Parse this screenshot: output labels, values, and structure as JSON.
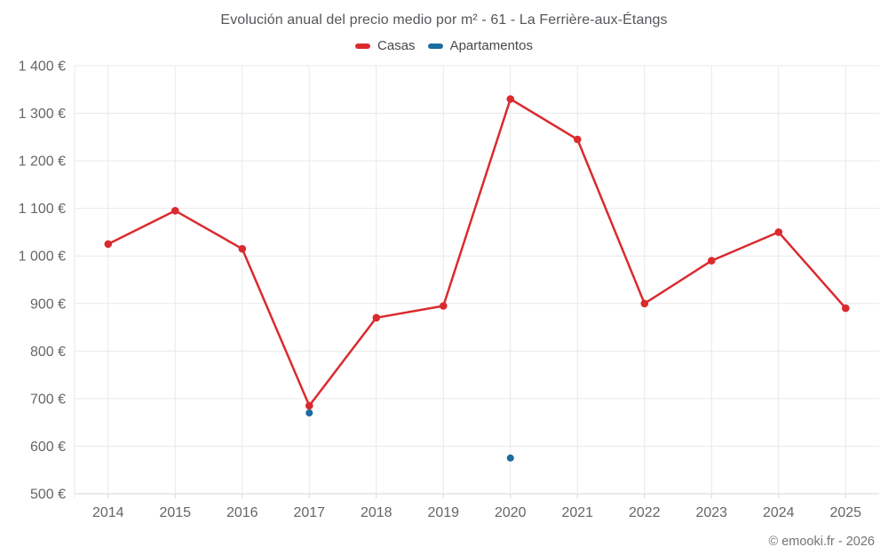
{
  "header": {
    "title": "Evolución anual del precio medio por m² - 61 - La Ferrière-aux-Étangs"
  },
  "legend": {
    "items": [
      {
        "label": "Casas",
        "color": "#da2a2e"
      },
      {
        "label": "Apartamentos",
        "color": "#1a6d9e"
      }
    ]
  },
  "footer": {
    "credit": "© emooki.fr - 2026"
  },
  "chart_data": {
    "type": "line",
    "title": "Evolución anual del precio medio por m² - 61 - La Ferrière-aux-Étangs",
    "categories": [
      "2014",
      "2015",
      "2016",
      "2017",
      "2018",
      "2019",
      "2020",
      "2021",
      "2022",
      "2023",
      "2024",
      "2025"
    ],
    "series": [
      {
        "name": "Casas",
        "color": "#da2a2e",
        "values": [
          1025,
          1095,
          1015,
          685,
          870,
          895,
          1330,
          1245,
          900,
          990,
          1050,
          890
        ]
      },
      {
        "name": "Apartamentos",
        "color": "#1a6d9e",
        "values": [
          null,
          null,
          null,
          670,
          null,
          null,
          575,
          null,
          null,
          null,
          null,
          null
        ]
      }
    ],
    "xlabel": "",
    "ylabel": "",
    "ylim": [
      500,
      1400
    ],
    "ytick_step": 100,
    "y_ticks": [
      {
        "value": 500,
        "label": "500 €"
      },
      {
        "value": 600,
        "label": "600 €"
      },
      {
        "value": 700,
        "label": "700 €"
      },
      {
        "value": 800,
        "label": "800 €"
      },
      {
        "value": 900,
        "label": "900 €"
      },
      {
        "value": 1000,
        "label": "1 000 €"
      },
      {
        "value": 1100,
        "label": "1 100 €"
      },
      {
        "value": 1200,
        "label": "1 200 €"
      },
      {
        "value": 1300,
        "label": "1 300 €"
      },
      {
        "value": 1400,
        "label": "1 400 €"
      }
    ],
    "grid": true,
    "legend_position": "top",
    "currency": "€"
  },
  "colors": {
    "grid": "#e9e9e9",
    "axis": "#d5d5d5",
    "tick_label": "#66666a",
    "title": "#55565a",
    "footer": "#757575"
  }
}
